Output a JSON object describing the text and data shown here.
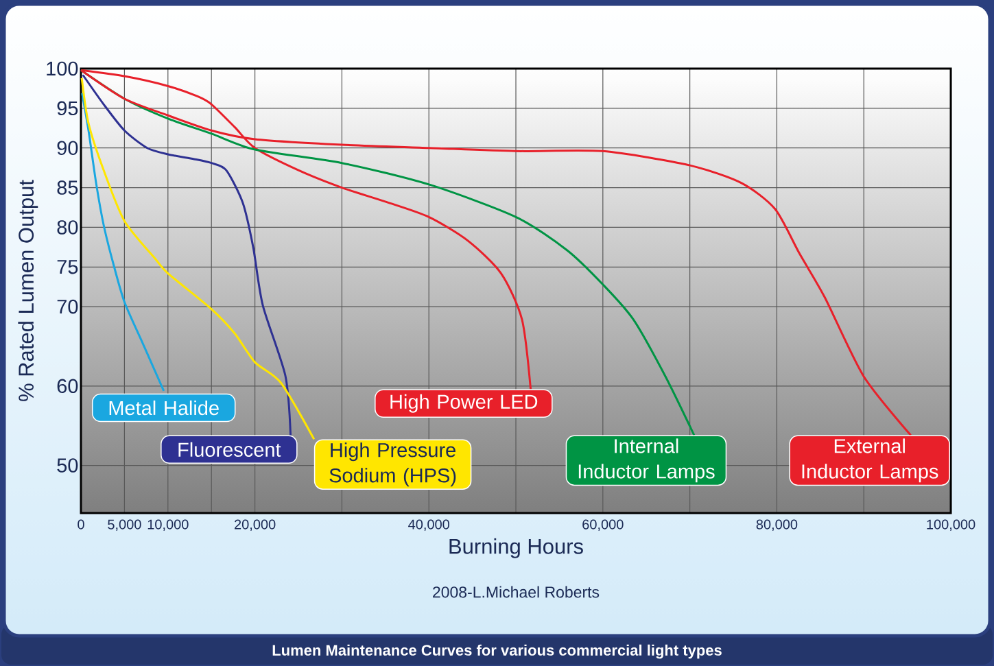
{
  "chart_data": {
    "type": "line",
    "title": "Lumen Maintenance Curves for various commercial light types",
    "xlabel": "Burning Hours",
    "ylabel": "% Rated Lumen Output",
    "annotations": [
      "2008-L.Michael Roberts"
    ],
    "xlim": [
      0,
      100000
    ],
    "xticks": [
      0,
      {
        "value": 5000,
        "label": "5,000"
      },
      {
        "value": 10000,
        "label": "10,000"
      },
      {
        "value": 15000,
        "label": null
      },
      {
        "value": 20000,
        "label": "20,000"
      },
      {
        "value": 30000,
        "label": null
      },
      {
        "value": 40000,
        "label": "40,000"
      },
      {
        "value": 50000,
        "label": null
      },
      {
        "value": 60000,
        "label": "60,000"
      },
      {
        "value": 70000,
        "label": null
      },
      {
        "value": 80000,
        "label": "80,000"
      },
      {
        "value": 90000,
        "label": null
      },
      {
        "value": 100000,
        "label": "100,000"
      }
    ],
    "ylim": [
      44,
      100
    ],
    "yticks": [
      50,
      60,
      70,
      75,
      80,
      85,
      90,
      95,
      100
    ],
    "grid": true,
    "marker": "none",
    "line_style": "solid",
    "series": [
      {
        "name": "Metal Halide",
        "color": "#1aa7e0",
        "x": [
          130,
          870,
          1740,
          2610,
          3700,
          5000,
          7140,
          9520
        ],
        "values": [
          96.9,
          92.2,
          85.6,
          80.3,
          75.5,
          70.6,
          65.3,
          59.4
        ]
      },
      {
        "name": "Fluorescent",
        "color": "#2e3192",
        "x": [
          220,
          2610,
          5000,
          7620,
          10000,
          13000,
          15000,
          16700,
          18600,
          19800,
          20900,
          23500,
          24100
        ],
        "values": [
          99.2,
          95.5,
          92.2,
          90,
          89.2,
          88.6,
          88.1,
          87.2,
          83.1,
          77.5,
          70.2,
          61.3,
          53.8
        ]
      },
      {
        "name": "High Pressure Sodium (HPS)",
        "color": "#ffe600",
        "x": [
          90,
          870,
          2610,
          5000,
          8570,
          10000,
          15000,
          17700,
          20000,
          23000,
          26800
        ],
        "values": [
          98.8,
          93.1,
          87.2,
          80.8,
          76,
          74.2,
          69.7,
          66.6,
          63,
          60.4,
          53.3
        ]
      },
      {
        "name": "High Power LED",
        "color": "#e8202a",
        "x": [
          0,
          5200,
          10000,
          13400,
          15000,
          17700,
          20000,
          25000,
          30000,
          35100,
          40000,
          44500,
          48300,
          50700,
          51700
        ],
        "values": [
          99.8,
          99,
          97.8,
          96.5,
          95.5,
          92.6,
          90,
          87.2,
          85,
          83.2,
          81.3,
          78.3,
          74.2,
          68.4,
          59.6
        ]
      },
      {
        "name": "Internal Inductor Lamps",
        "color": "#009444",
        "x": [
          0,
          5000,
          10000,
          15000,
          20000,
          30000,
          40000,
          50000,
          55900,
          60000,
          63500,
          67200,
          70500
        ],
        "values": [
          99.8,
          96.2,
          93.7,
          91.8,
          89.8,
          88.1,
          85.4,
          81.3,
          77.1,
          72.8,
          68.4,
          61.2,
          53.8
        ]
      },
      {
        "name": "External Inductor Lamps",
        "color": "#e8202a",
        "x": [
          0,
          5000,
          10000,
          15000,
          20000,
          30000,
          40000,
          50000,
          60000,
          70000,
          75900,
          79800,
          82600,
          85500,
          90000,
          95400
        ],
        "values": [
          99.8,
          96.2,
          94.1,
          92.2,
          91.1,
          90.4,
          90,
          89.6,
          89.6,
          87.8,
          85.6,
          82.3,
          76.7,
          71.2,
          61.2,
          53.8
        ]
      }
    ]
  }
}
